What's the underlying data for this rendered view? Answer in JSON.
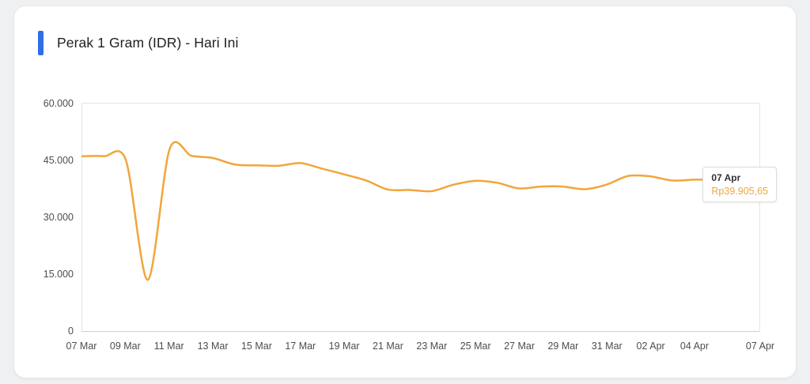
{
  "page": {
    "background_color": "#eef0f2"
  },
  "card": {
    "title": "Perak 1 Gram (IDR) - Hari Ini",
    "accent_color": "#2e6fe8"
  },
  "tooltip": {
    "date": "07 Apr",
    "value": "Rp39.905,65",
    "value_color": "#f0a63c"
  },
  "chart_data": {
    "type": "line",
    "title": "Perak 1 Gram (IDR) - Hari Ini",
    "x": [
      "07 Mar",
      "08 Mar",
      "09 Mar",
      "10 Mar",
      "11 Mar",
      "12 Mar",
      "13 Mar",
      "14 Mar",
      "15 Mar",
      "16 Mar",
      "17 Mar",
      "18 Mar",
      "19 Mar",
      "20 Mar",
      "21 Mar",
      "22 Mar",
      "23 Mar",
      "24 Mar",
      "25 Mar",
      "26 Mar",
      "27 Mar",
      "28 Mar",
      "29 Mar",
      "30 Mar",
      "31 Mar",
      "01 Apr",
      "02 Apr",
      "03 Apr",
      "04 Apr",
      "05 Apr",
      "06 Apr",
      "07 Apr"
    ],
    "series": [
      {
        "name": "Perak 1 Gram (IDR)",
        "color": "#f0a63c",
        "values": [
          46100,
          46100,
          45000,
          13500,
          48000,
          46200,
          45600,
          43900,
          43700,
          43600,
          44300,
          42800,
          41300,
          39700,
          37300,
          37200,
          36900,
          38600,
          39600,
          39100,
          37600,
          38100,
          38100,
          37400,
          38600,
          40900,
          40800,
          39700,
          39900,
          39900,
          39900,
          39905.65
        ]
      }
    ],
    "x_tick_labels": [
      "07 Mar",
      "09 Mar",
      "11 Mar",
      "13 Mar",
      "15 Mar",
      "17 Mar",
      "19 Mar",
      "21 Mar",
      "23 Mar",
      "25 Mar",
      "27 Mar",
      "29 Mar",
      "31 Mar",
      "02 Apr",
      "04 Apr",
      "07 Apr"
    ],
    "y_ticks": [
      0,
      15000,
      30000,
      45000,
      60000
    ],
    "y_tick_labels": [
      "0",
      "15.000",
      "30.000",
      "45.000",
      "60.000"
    ],
    "ylim": [
      0,
      60000
    ],
    "grid": false,
    "legend": "none",
    "last_point": {
      "x": "07 Apr",
      "value": 39905.65,
      "value_label": "Rp39.905,65"
    }
  }
}
